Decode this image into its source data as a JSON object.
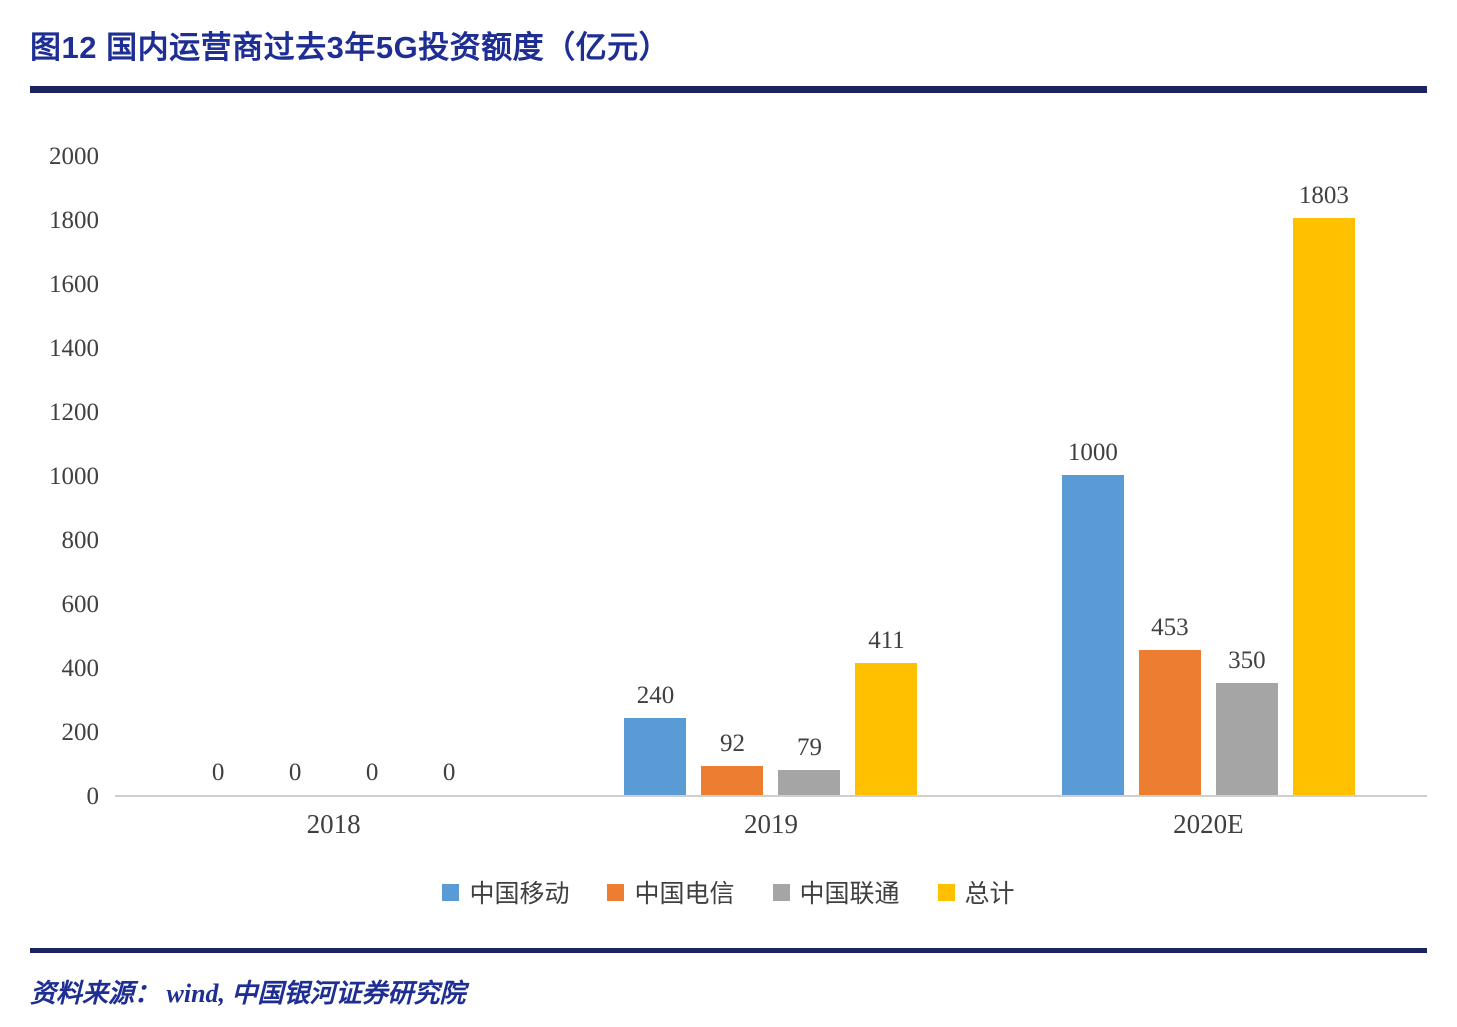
{
  "header": {
    "title": "图12 国内运营商过去3年5G投资额度（亿元）"
  },
  "footer": {
    "source": "资料来源： wind, 中国银河证券研究院"
  },
  "colors": {
    "navy_rule": "#1B2360",
    "title_text": "#1E2E93",
    "axis_text": "#404040",
    "baseline": "#CFCFCF"
  },
  "chart_data": {
    "type": "bar",
    "title": "图12 国内运营商过去3年5G投资额度（亿元）",
    "categories": [
      "2018",
      "2019",
      "2020E"
    ],
    "series": [
      {
        "name": "中国移动",
        "color": "#5B9BD5",
        "values": [
          0,
          240,
          1000
        ]
      },
      {
        "name": "中国电信",
        "color": "#ED7D31",
        "values": [
          0,
          92,
          453
        ]
      },
      {
        "name": "中国联通",
        "color": "#A5A5A5",
        "values": [
          0,
          79,
          350
        ]
      },
      {
        "name": "总计",
        "color": "#FFC000",
        "values": [
          0,
          411,
          1803
        ]
      }
    ],
    "ylim": [
      0,
      2000
    ],
    "yticks": [
      0,
      200,
      400,
      600,
      800,
      1000,
      1200,
      1400,
      1600,
      1800,
      2000
    ],
    "grid": false,
    "legend_position": "bottom",
    "value_labels": true,
    "xlabel": "",
    "ylabel": ""
  }
}
